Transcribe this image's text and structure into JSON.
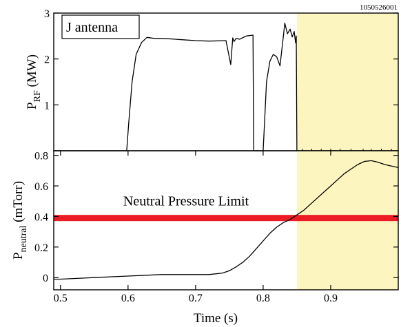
{
  "shot_id": "1050526001",
  "colors": {
    "highlight": "#fdf5c0",
    "limit_line": "#ec1c24",
    "trace": "#000000"
  },
  "chart_data": [
    {
      "type": "line",
      "panel": "top",
      "label": "J antenna",
      "ylabel_main": "P",
      "ylabel_sub": "RF",
      "ylabel_unit": " (MW)",
      "xlim": [
        0.49,
        1.0
      ],
      "ylim": [
        0,
        3
      ],
      "yticks": [
        "1",
        "2",
        "3"
      ],
      "ytick_values": [
        1,
        2,
        3
      ],
      "shaded_region": [
        0.85,
        1.0
      ],
      "series": [
        {
          "x": [
            0.49,
            0.598,
            0.601,
            0.606,
            0.612,
            0.62,
            0.628,
            0.638,
            0.66,
            0.68,
            0.7,
            0.72,
            0.745,
            0.752,
            0.755,
            0.757,
            0.76,
            0.765,
            0.775,
            0.785,
            0.786,
            0.788,
            0.79,
            0.8,
            0.802,
            0.805,
            0.81,
            0.815,
            0.82,
            0.825,
            0.83,
            0.832,
            0.836,
            0.84,
            0.843,
            0.846,
            0.848,
            0.849,
            0.85,
            0.852,
            1.0
          ],
          "y": [
            0,
            0,
            0.6,
            1.5,
            2.1,
            2.36,
            2.47,
            2.45,
            2.44,
            2.42,
            2.4,
            2.39,
            2.4,
            1.88,
            2.46,
            2.38,
            2.45,
            2.43,
            2.5,
            2.52,
            0,
            0,
            0,
            0,
            0.6,
            1.5,
            1.95,
            2.1,
            2.05,
            1.85,
            2.5,
            2.78,
            2.55,
            2.65,
            2.48,
            2.6,
            2.35,
            2.5,
            0,
            0,
            0
          ]
        }
      ]
    },
    {
      "type": "line",
      "panel": "bottom",
      "ylabel_main": "P",
      "ylabel_sub": "neutral",
      "ylabel_unit": " (mTorr)",
      "xlabel": "Time (s)",
      "xlim": [
        0.49,
        1.0
      ],
      "ylim": [
        -0.08,
        0.83
      ],
      "xticks": [
        "0.5",
        "0.6",
        "0.7",
        "0.8",
        "0.9"
      ],
      "xtick_values": [
        0.5,
        0.6,
        0.7,
        0.8,
        0.9
      ],
      "yticks": [
        "0",
        "0.2",
        "0.4",
        "0.6",
        "0.8"
      ],
      "ytick_values": [
        0,
        0.2,
        0.4,
        0.6,
        0.8
      ],
      "shaded_region": [
        0.85,
        1.0
      ],
      "threshold": {
        "label": "Neutral Pressure Limit",
        "y": 0.39
      },
      "series": [
        {
          "x": [
            0.49,
            0.5,
            0.55,
            0.6,
            0.65,
            0.7,
            0.72,
            0.74,
            0.75,
            0.76,
            0.77,
            0.78,
            0.79,
            0.8,
            0.81,
            0.82,
            0.83,
            0.84,
            0.85,
            0.86,
            0.87,
            0.88,
            0.89,
            0.9,
            0.91,
            0.92,
            0.93,
            0.94,
            0.95,
            0.96,
            0.97,
            0.98,
            0.99,
            1.0
          ],
          "y": [
            -0.01,
            -0.01,
            0.0,
            0.01,
            0.02,
            0.02,
            0.02,
            0.03,
            0.045,
            0.07,
            0.1,
            0.14,
            0.19,
            0.24,
            0.29,
            0.33,
            0.36,
            0.38,
            0.41,
            0.44,
            0.48,
            0.52,
            0.56,
            0.6,
            0.64,
            0.68,
            0.71,
            0.74,
            0.76,
            0.765,
            0.755,
            0.74,
            0.73,
            0.72
          ]
        }
      ]
    }
  ]
}
